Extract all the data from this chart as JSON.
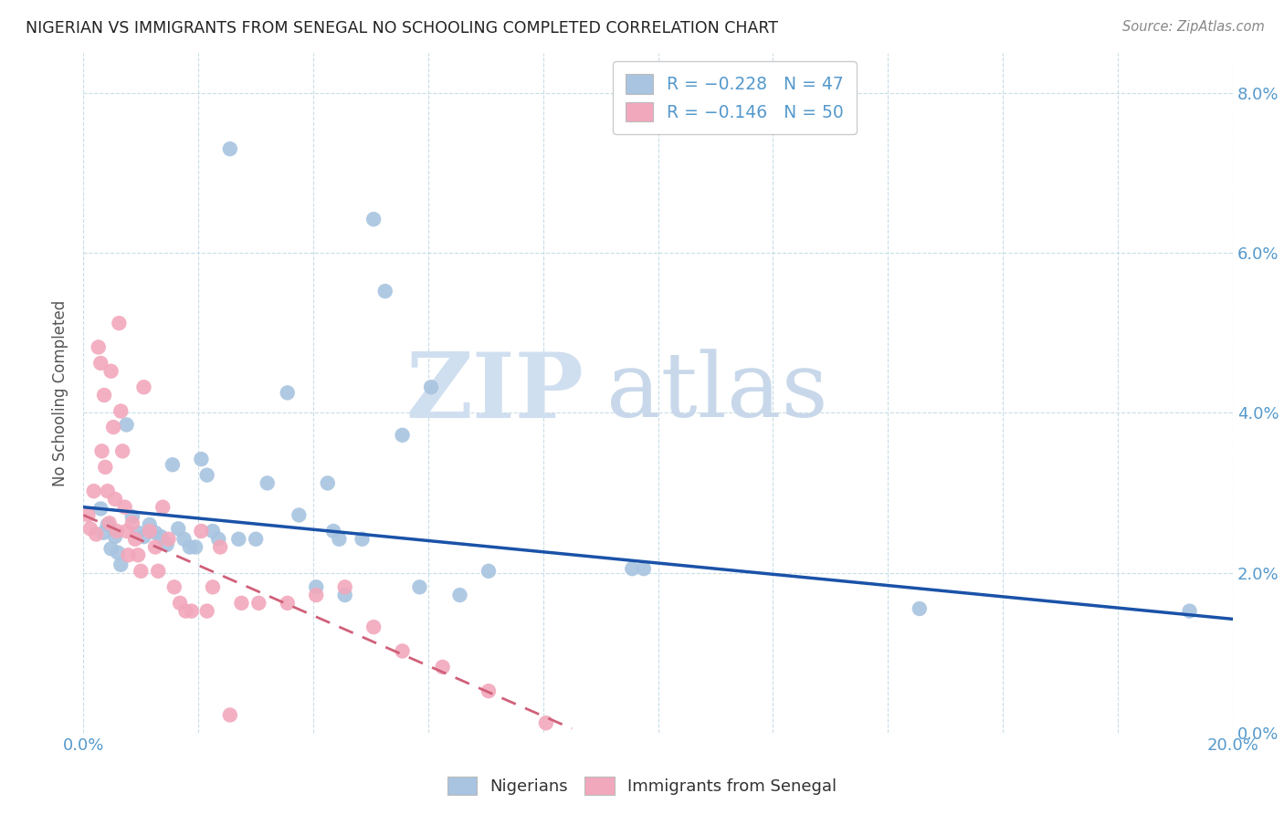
{
  "title": "NIGERIAN VS IMMIGRANTS FROM SENEGAL NO SCHOOLING COMPLETED CORRELATION CHART",
  "source": "Source: ZipAtlas.com",
  "ylabel": "No Schooling Completed",
  "xlim": [
    0.0,
    20.0
  ],
  "ylim": [
    0.0,
    8.5
  ],
  "blue_r": "-0.228",
  "blue_n": "47",
  "pink_r": "-0.146",
  "pink_n": "50",
  "blue_dot_color": "#a8c4e0",
  "pink_dot_color": "#f2a8bc",
  "blue_line_color": "#1a52a8",
  "pink_line_color": "#d0607a",
  "grid_color": "#c8dde8",
  "watermark_zip_color": "#d0dff0",
  "watermark_atlas_color": "#c8d8ea",
  "title_color": "#222222",
  "axis_label_color": "#5599cc",
  "source_color": "#888888",
  "blue_dots": [
    [
      0.3,
      2.8
    ],
    [
      0.35,
      2.5
    ],
    [
      0.42,
      2.6
    ],
    [
      0.48,
      2.3
    ],
    [
      0.55,
      2.45
    ],
    [
      0.6,
      2.25
    ],
    [
      0.65,
      2.1
    ],
    [
      0.75,
      3.85
    ],
    [
      0.85,
      2.7
    ],
    [
      0.95,
      2.5
    ],
    [
      1.05,
      2.45
    ],
    [
      1.15,
      2.6
    ],
    [
      1.25,
      2.5
    ],
    [
      1.35,
      2.45
    ],
    [
      1.45,
      2.35
    ],
    [
      1.55,
      3.35
    ],
    [
      1.65,
      2.55
    ],
    [
      1.75,
      2.42
    ],
    [
      1.85,
      2.32
    ],
    [
      1.95,
      2.32
    ],
    [
      2.05,
      3.42
    ],
    [
      2.15,
      3.22
    ],
    [
      2.25,
      2.52
    ],
    [
      2.35,
      2.42
    ],
    [
      2.55,
      7.3
    ],
    [
      2.7,
      2.42
    ],
    [
      3.0,
      2.42
    ],
    [
      3.2,
      3.12
    ],
    [
      3.55,
      4.25
    ],
    [
      3.75,
      2.72
    ],
    [
      4.05,
      1.82
    ],
    [
      4.25,
      3.12
    ],
    [
      4.35,
      2.52
    ],
    [
      4.45,
      2.42
    ],
    [
      4.55,
      1.72
    ],
    [
      4.85,
      2.42
    ],
    [
      5.05,
      6.42
    ],
    [
      5.25,
      5.52
    ],
    [
      5.55,
      3.72
    ],
    [
      5.85,
      1.82
    ],
    [
      6.05,
      4.32
    ],
    [
      6.55,
      1.72
    ],
    [
      7.05,
      2.02
    ],
    [
      9.55,
      2.05
    ],
    [
      9.75,
      2.05
    ],
    [
      14.55,
      1.55
    ],
    [
      19.25,
      1.52
    ]
  ],
  "pink_dots": [
    [
      0.08,
      2.72
    ],
    [
      0.12,
      2.55
    ],
    [
      0.18,
      3.02
    ],
    [
      0.22,
      2.48
    ],
    [
      0.26,
      4.82
    ],
    [
      0.3,
      4.62
    ],
    [
      0.32,
      3.52
    ],
    [
      0.36,
      4.22
    ],
    [
      0.38,
      3.32
    ],
    [
      0.42,
      3.02
    ],
    [
      0.45,
      2.62
    ],
    [
      0.48,
      4.52
    ],
    [
      0.52,
      3.82
    ],
    [
      0.55,
      2.92
    ],
    [
      0.58,
      2.52
    ],
    [
      0.62,
      5.12
    ],
    [
      0.65,
      4.02
    ],
    [
      0.68,
      3.52
    ],
    [
      0.72,
      2.82
    ],
    [
      0.75,
      2.52
    ],
    [
      0.78,
      2.22
    ],
    [
      0.85,
      2.62
    ],
    [
      0.9,
      2.42
    ],
    [
      0.95,
      2.22
    ],
    [
      1.0,
      2.02
    ],
    [
      1.05,
      4.32
    ],
    [
      1.15,
      2.52
    ],
    [
      1.25,
      2.32
    ],
    [
      1.3,
      2.02
    ],
    [
      1.38,
      2.82
    ],
    [
      1.48,
      2.42
    ],
    [
      1.58,
      1.82
    ],
    [
      1.68,
      1.62
    ],
    [
      1.78,
      1.52
    ],
    [
      1.88,
      1.52
    ],
    [
      2.05,
      2.52
    ],
    [
      2.15,
      1.52
    ],
    [
      2.25,
      1.82
    ],
    [
      2.38,
      2.32
    ],
    [
      2.55,
      0.22
    ],
    [
      2.75,
      1.62
    ],
    [
      3.05,
      1.62
    ],
    [
      3.55,
      1.62
    ],
    [
      4.05,
      1.72
    ],
    [
      4.55,
      1.82
    ],
    [
      5.05,
      1.32
    ],
    [
      5.55,
      1.02
    ],
    [
      6.25,
      0.82
    ],
    [
      7.05,
      0.52
    ],
    [
      8.05,
      0.12
    ]
  ],
  "blue_line_x": [
    0.0,
    20.0
  ],
  "blue_line_y": [
    2.82,
    1.42
  ],
  "pink_line_x": [
    0.0,
    8.5
  ],
  "pink_line_y": [
    2.72,
    0.05
  ]
}
